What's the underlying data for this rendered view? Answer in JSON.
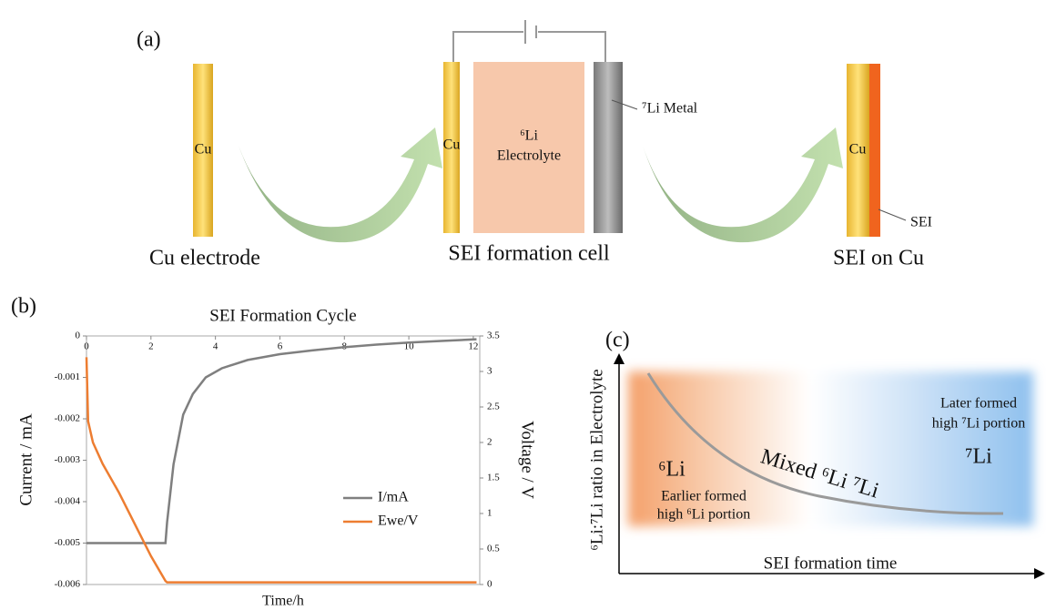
{
  "panel_a": {
    "label": "(a)",
    "electrode": {
      "metal": "Cu",
      "caption": "Cu electrode"
    },
    "cell": {
      "metal": "Cu",
      "electrolyte": [
        "⁶Li",
        "Electrolyte"
      ],
      "counter": "⁷Li Metal",
      "caption": "SEI formation cell"
    },
    "result": {
      "metal": "Cu",
      "layer": "SEI",
      "caption": "SEI on Cu"
    }
  },
  "chart_data": {
    "type": "line",
    "label": "(b)",
    "title": "SEI Formation Cycle",
    "x_label": "Time/h",
    "y_label": "Current / mA",
    "y2_label": "Voltage / V",
    "x": [
      0,
      0.05,
      0.2,
      0.5,
      1.0,
      1.5,
      2.0,
      2.45,
      2.5,
      2.6,
      2.7,
      2.85,
      3.0,
      3.3,
      3.7,
      4.2,
      5,
      6,
      7,
      8,
      9,
      10,
      11,
      12.1
    ],
    "series": [
      {
        "name": "I/mA",
        "color": "#7f7f7f",
        "values": [
          -0.005,
          -0.005,
          -0.005,
          -0.005,
          -0.005,
          -0.005,
          -0.005,
          -0.005,
          -0.0045,
          -0.0038,
          -0.0031,
          -0.0025,
          -0.0019,
          -0.0014,
          -0.001,
          -0.00078,
          -0.00058,
          -0.00044,
          -0.00035,
          -0.00027,
          -0.00021,
          -0.00016,
          -0.00012,
          -8e-05
        ]
      },
      {
        "name": "Ewe/V",
        "color": "#ed7d31",
        "axis": "y2",
        "values": [
          3.2,
          2.3,
          2.0,
          1.7,
          1.3,
          0.85,
          0.4,
          0.05,
          0.03,
          0.03,
          0.03,
          0.03,
          0.03,
          0.03,
          0.03,
          0.03,
          0.03,
          0.03,
          0.03,
          0.03,
          0.03,
          0.03,
          0.03,
          0.03
        ]
      }
    ],
    "xlim": [
      0,
      12.2
    ],
    "xticks": [
      0,
      2,
      4,
      6,
      8,
      10,
      12
    ],
    "ylim": [
      -0.006,
      0
    ],
    "yticks": [
      0,
      -0.001,
      -0.002,
      -0.003,
      -0.004,
      -0.005,
      -0.006
    ],
    "y2lim": [
      0,
      3.5
    ],
    "y2ticks": [
      0,
      0.5,
      1,
      1.5,
      2,
      2.5,
      3,
      3.5
    ],
    "grid": false,
    "legend": "right"
  },
  "panel_c": {
    "label": "(c)",
    "y_label": "⁶Li:⁷Li ratio in Electrolyte",
    "x_label": "SEI formation time",
    "early": {
      "isotope": "⁶Li",
      "note": [
        "Earlier formed",
        "high ⁶Li portion"
      ]
    },
    "middle": "Mixed ⁶Li ⁷Li",
    "late": {
      "isotope": "⁷Li",
      "note": [
        "Later formed",
        "high ⁷Li portion"
      ]
    }
  }
}
